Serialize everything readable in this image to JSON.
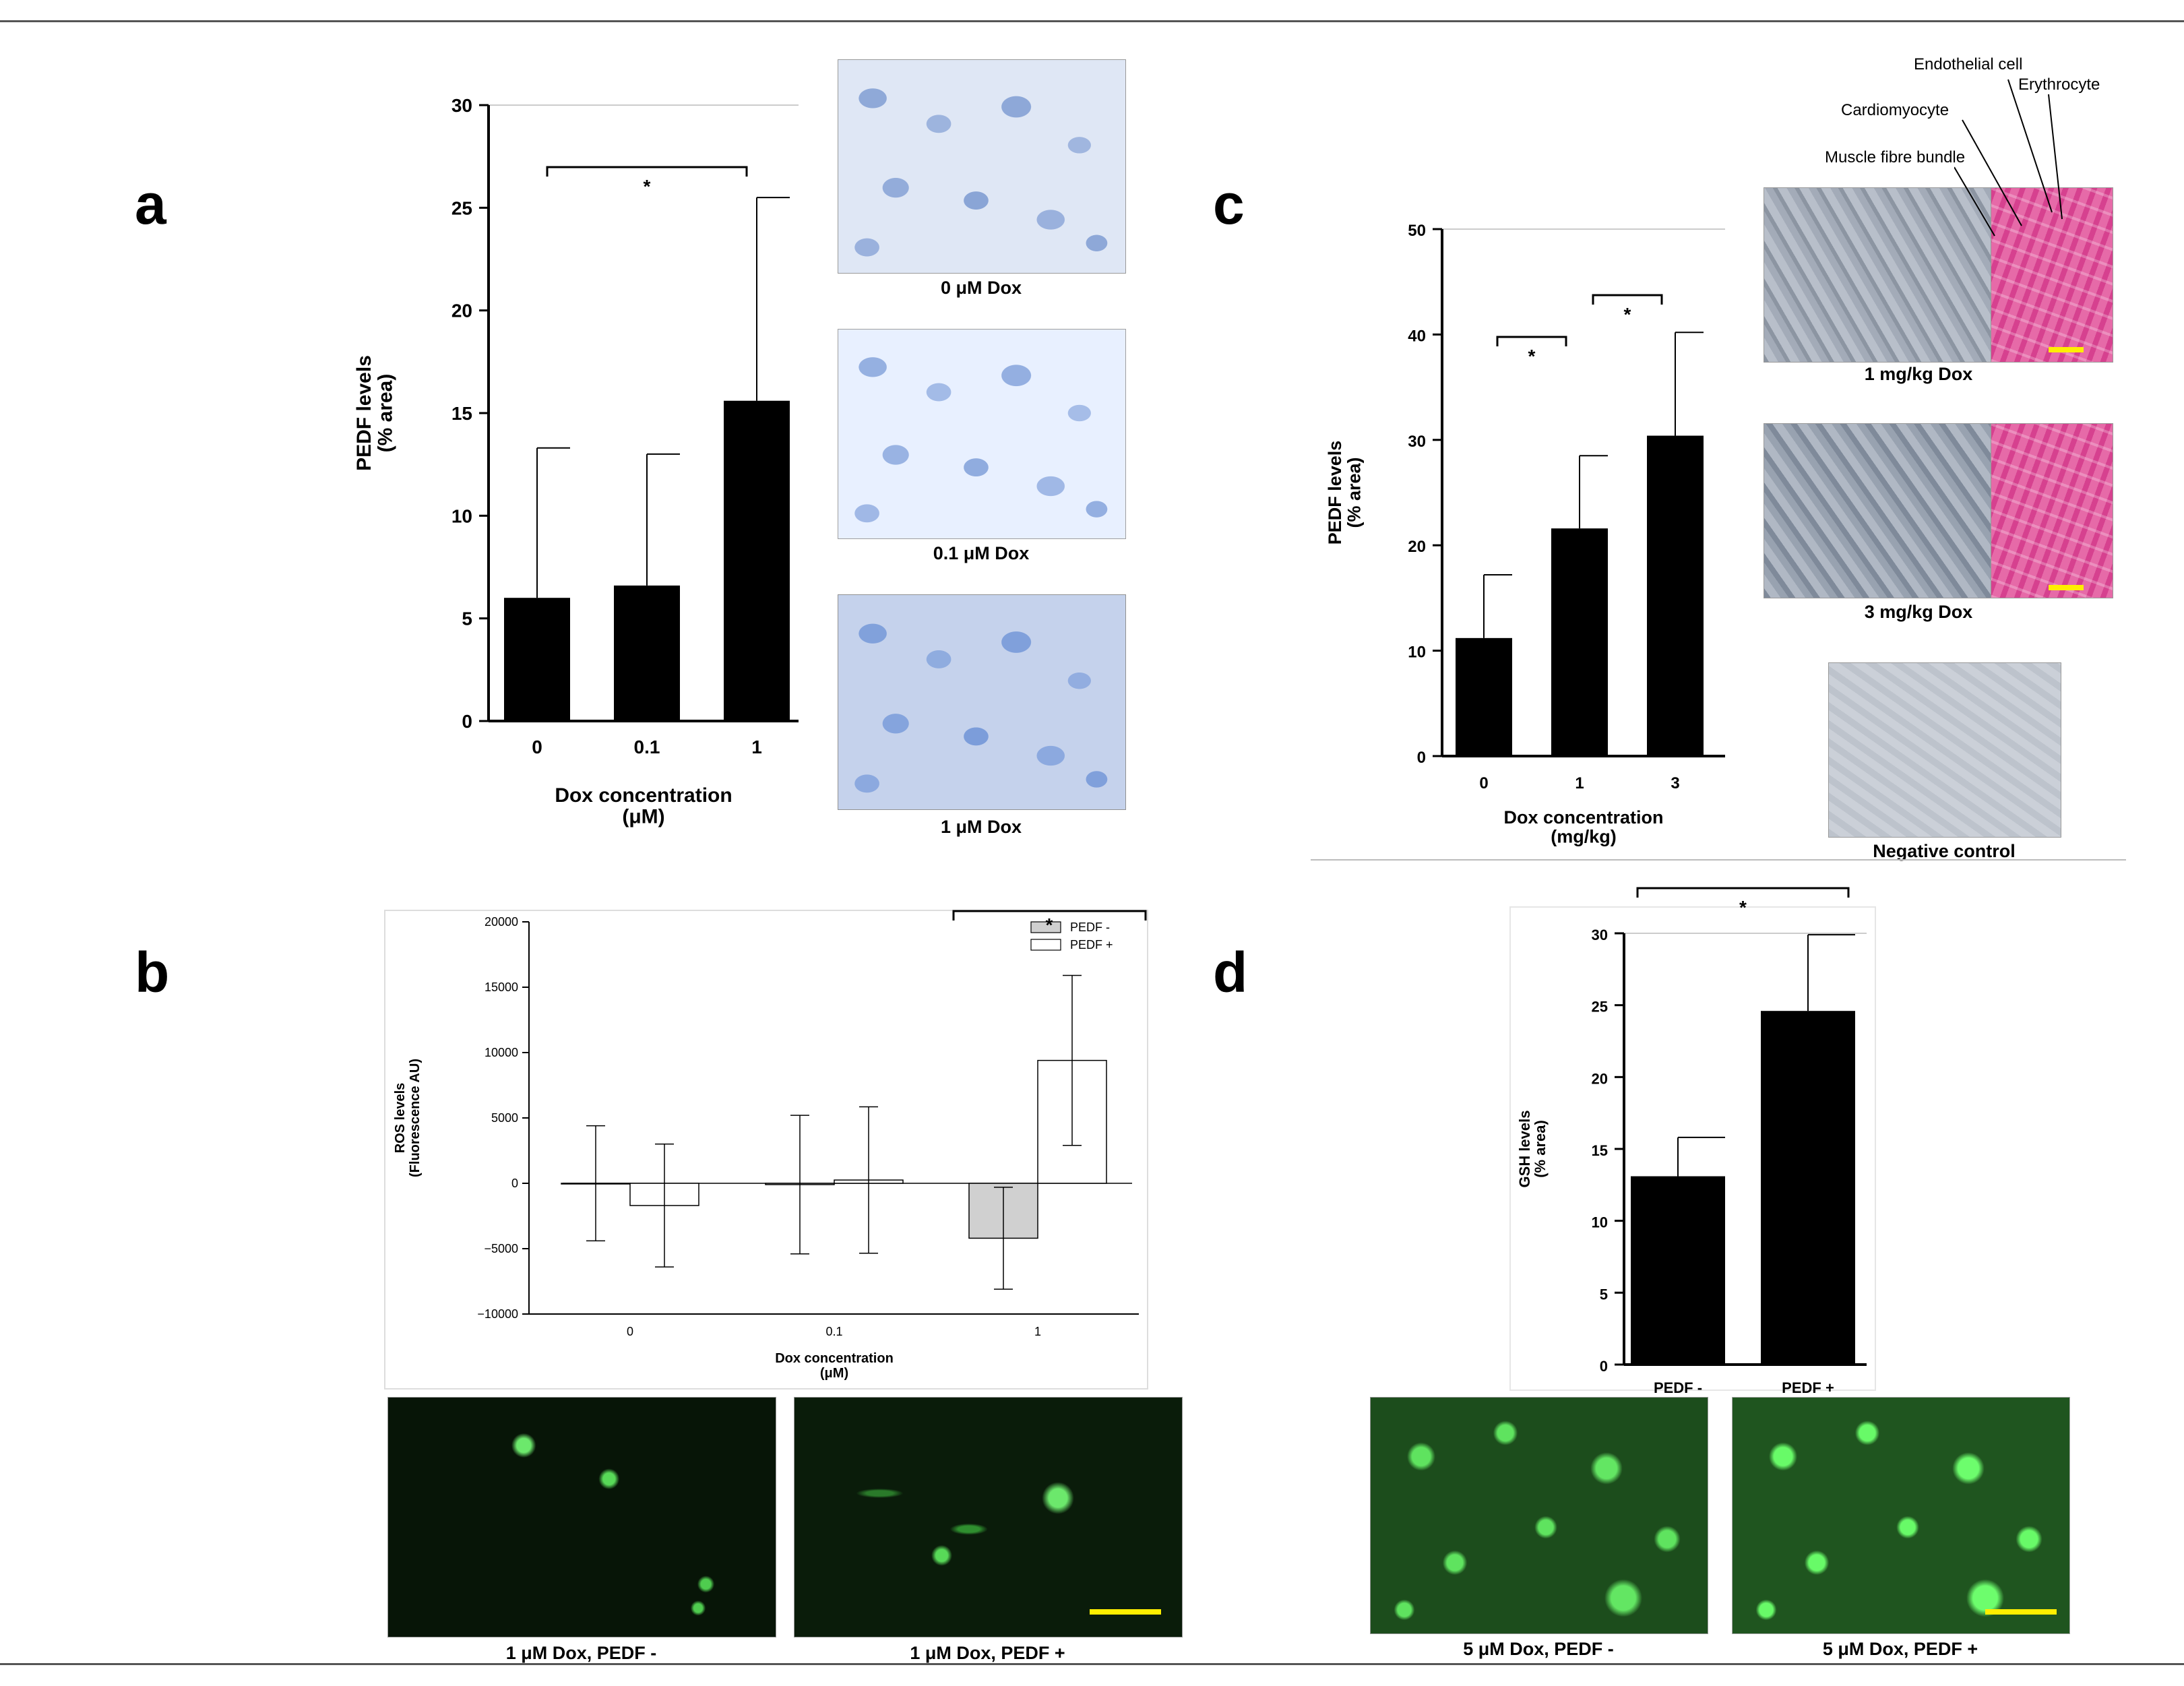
{
  "panels": {
    "a": "a",
    "b": "b",
    "c": "c",
    "d": "d"
  },
  "colors": {
    "bar": "#000000",
    "bar_grey": "#d0d0d0",
    "bar_white": "#ffffff",
    "scale_bar": "#ffee00"
  },
  "captions": {
    "a_img1": "0 μM Dox",
    "a_img2": "0.1 μM Dox",
    "a_img3": "1 μM Dox",
    "b_img1": "1 μM Dox, PEDF -",
    "b_img2": "1 μM Dox, PEDF +",
    "c_img1": "1 mg/kg Dox",
    "c_img2": "3 mg/kg Dox",
    "c_img3": "Negative control",
    "d_img1": "5 μM Dox, PEDF -",
    "d_img2": "5 μM Dox, PEDF +"
  },
  "annotations": {
    "endothelial": "Endothelial cell",
    "erythrocyte": "Erythrocyte",
    "cardiomyocyte": "Cardiomyocyte",
    "muscle": "Muscle fibre bundle"
  },
  "chart_data": [
    {
      "id": "a",
      "type": "bar",
      "categories": [
        "0",
        "0.1",
        "1"
      ],
      "values": [
        6.0,
        6.6,
        15.6
      ],
      "errors": [
        7.3,
        6.4,
        9.9
      ],
      "ylabel": "PEDF levels\n(% area)",
      "xlabel": "Dox concentration\n(μM)",
      "ylim": [
        0,
        30
      ],
      "yticks": [
        "0",
        "5",
        "10",
        "15",
        "20",
        "25",
        "30"
      ],
      "significance": [
        {
          "from": 0,
          "to": 2,
          "label": "*"
        }
      ]
    },
    {
      "id": "b",
      "type": "bar",
      "categories": [
        "0",
        "0.1",
        "1"
      ],
      "series": [
        {
          "name": "PEDF -",
          "values": [
            0,
            -100,
            -4200
          ],
          "errors": [
            4400,
            5300,
            3900
          ]
        },
        {
          "name": "PEDF +",
          "values": [
            -1700,
            250,
            9400
          ],
          "errors": [
            4700,
            5600,
            6500
          ]
        }
      ],
      "ylabel": "ROS levels\n(Fluorescence AU)",
      "xlabel": "Dox concentration\n(μM)",
      "ylim": [
        -10000,
        20000
      ],
      "yticks": [
        "−10000",
        "−5000",
        "0",
        "5000",
        "10000",
        "15000",
        "20000"
      ],
      "legend": "top-right",
      "significance": [
        {
          "label": "*"
        }
      ]
    },
    {
      "id": "c",
      "type": "bar",
      "categories": [
        "0",
        "1",
        "3"
      ],
      "values": [
        11.2,
        21.6,
        30.4
      ],
      "errors": [
        6.0,
        6.9,
        9.8
      ],
      "ylabel": "PEDF levels\n(% area)",
      "xlabel": "Dox concentration\n(mg/kg)",
      "ylim": [
        0,
        50
      ],
      "yticks": [
        "0",
        "10",
        "20",
        "30",
        "40",
        "50"
      ],
      "significance": [
        {
          "from": 0,
          "to": 1,
          "label": "*"
        },
        {
          "from": 1,
          "to": 2,
          "label": "*"
        }
      ]
    },
    {
      "id": "d",
      "type": "bar",
      "categories": [
        "PEDF -",
        "PEDF +"
      ],
      "values": [
        13.1,
        24.6
      ],
      "errors": [
        2.7,
        5.3
      ],
      "ylabel": "GSH levels\n(% area)",
      "xlabel": "",
      "ylim": [
        0,
        30
      ],
      "yticks": [
        "0",
        "5",
        "10",
        "15",
        "20",
        "25",
        "30"
      ],
      "significance": [
        {
          "from": 0,
          "to": 1,
          "label": "*"
        }
      ]
    }
  ]
}
